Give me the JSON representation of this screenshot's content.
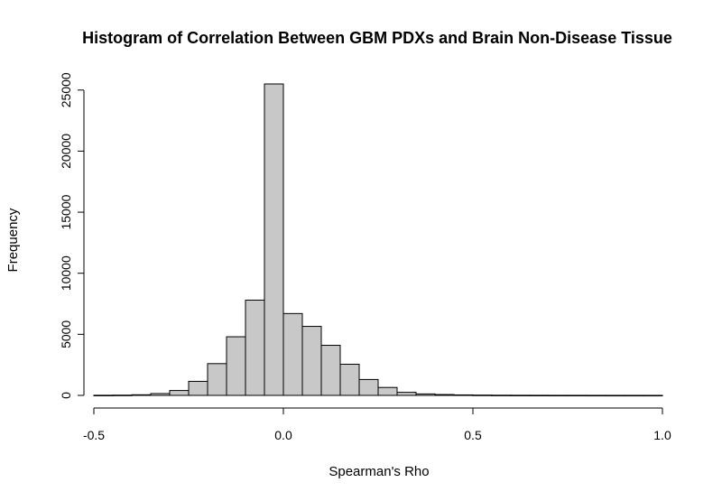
{
  "chart_data": {
    "type": "bar",
    "title": "Histogram of Correlation Between GBM PDXs and Brain Non-Disease Tissue",
    "xlabel": "Spearman's Rho",
    "ylabel": "Frequency",
    "xlim": [
      -0.5,
      1.0
    ],
    "ylim": [
      0,
      25500
    ],
    "x_ticks": [
      "-0.5",
      "0.0",
      "0.5",
      "1.0"
    ],
    "y_ticks": [
      "0",
      "5000",
      "10000",
      "15000",
      "20000",
      "25000"
    ],
    "bin_width": 0.05,
    "bins": [
      {
        "start": -0.5,
        "end": -0.45,
        "count": 10
      },
      {
        "start": -0.45,
        "end": -0.4,
        "count": 20
      },
      {
        "start": -0.4,
        "end": -0.35,
        "count": 50
      },
      {
        "start": -0.35,
        "end": -0.3,
        "count": 150
      },
      {
        "start": -0.3,
        "end": -0.25,
        "count": 400
      },
      {
        "start": -0.25,
        "end": -0.2,
        "count": 1150
      },
      {
        "start": -0.2,
        "end": -0.15,
        "count": 2600
      },
      {
        "start": -0.15,
        "end": -0.1,
        "count": 4800
      },
      {
        "start": -0.1,
        "end": -0.05,
        "count": 7800
      },
      {
        "start": -0.05,
        "end": 0.0,
        "count": 25500
      },
      {
        "start": 0.0,
        "end": 0.05,
        "count": 6700
      },
      {
        "start": 0.05,
        "end": 0.1,
        "count": 5650
      },
      {
        "start": 0.1,
        "end": 0.15,
        "count": 4100
      },
      {
        "start": 0.15,
        "end": 0.2,
        "count": 2550
      },
      {
        "start": 0.2,
        "end": 0.25,
        "count": 1300
      },
      {
        "start": 0.25,
        "end": 0.3,
        "count": 650
      },
      {
        "start": 0.3,
        "end": 0.35,
        "count": 250
      },
      {
        "start": 0.35,
        "end": 0.4,
        "count": 120
      },
      {
        "start": 0.4,
        "end": 0.45,
        "count": 70
      },
      {
        "start": 0.45,
        "end": 0.5,
        "count": 40
      },
      {
        "start": 0.5,
        "end": 0.55,
        "count": 25
      },
      {
        "start": 0.55,
        "end": 0.6,
        "count": 15
      },
      {
        "start": 0.6,
        "end": 0.65,
        "count": 10
      },
      {
        "start": 0.65,
        "end": 0.7,
        "count": 8
      },
      {
        "start": 0.7,
        "end": 0.75,
        "count": 6
      },
      {
        "start": 0.75,
        "end": 0.8,
        "count": 5
      },
      {
        "start": 0.8,
        "end": 0.85,
        "count": 4
      },
      {
        "start": 0.85,
        "end": 0.9,
        "count": 3
      },
      {
        "start": 0.9,
        "end": 0.95,
        "count": 3
      },
      {
        "start": 0.95,
        "end": 1.0,
        "count": 2
      }
    ],
    "grid": false,
    "legend": "none",
    "colors": {
      "bar_fill": "#c8c8c8",
      "bar_stroke": "#000000"
    }
  }
}
